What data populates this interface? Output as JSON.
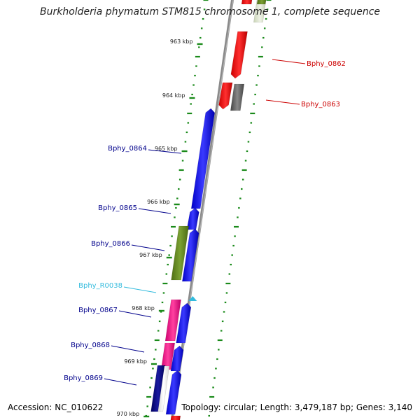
{
  "title": "Burkholderia phymatum STM815 chromosome 1, complete sequence",
  "accession": "Accession: NC_010622",
  "summary": "Topology: circular; Length: 3,479,187 bp; Genes: 3,140",
  "ruler": {
    "labels": [
      "963 kbp",
      "964 kbp",
      "965 kbp",
      "966 kbp",
      "967 kbp",
      "968 kbp",
      "969 kbp",
      "970 kbp"
    ],
    "tick_color": "#1a8a1a"
  },
  "colors": {
    "backbone": "#8a8a8a",
    "forward_label": "#00008b",
    "reverse_label": "#cc0000",
    "rna_label": "#33bbdd"
  },
  "features": [
    {
      "name": "Bphy_0862",
      "strand": "reverse",
      "type": "CDS",
      "color": "#ee1111"
    },
    {
      "name": "Bphy_0863",
      "strand": "reverse",
      "type": "CDS",
      "color": "#ee1111"
    },
    {
      "name": "Bphy_0864",
      "strand": "forward",
      "type": "CDS",
      "color": "#1515ee"
    },
    {
      "name": "Bphy_0865",
      "strand": "forward",
      "type": "CDS",
      "color": "#1515ee"
    },
    {
      "name": "Bphy_0866",
      "strand": "forward",
      "type": "CDS",
      "color": "#1515ee"
    },
    {
      "name": "Bphy_R0038",
      "strand": "forward",
      "type": "tRNA",
      "color": "#33bbdd"
    },
    {
      "name": "Bphy_0867",
      "strand": "forward",
      "type": "CDS",
      "color": "#1515ee"
    },
    {
      "name": "Bphy_0868",
      "strand": "forward",
      "type": "CDS",
      "color": "#1515ee"
    },
    {
      "name": "Bphy_0869",
      "strand": "forward",
      "type": "CDS",
      "color": "#1515ee"
    }
  ],
  "category_colors": {
    "green": "#6b8e23",
    "pink": "#ee1188",
    "navy": "#000080",
    "grey": "#666666",
    "light_green": "#dfe7d0"
  }
}
